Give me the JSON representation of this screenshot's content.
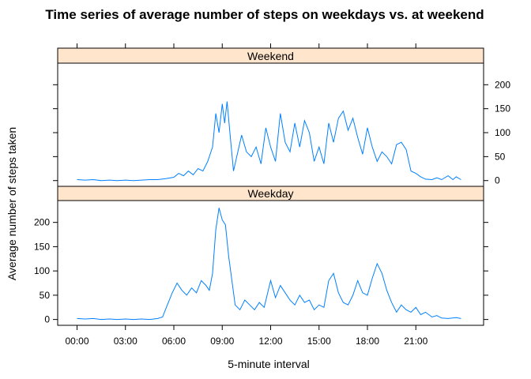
{
  "chart_data": {
    "type": "line",
    "title": "Time series of average number of steps on weekdays vs. at weekend",
    "xlabel": "5-minute interval",
    "ylabel": "Average number of steps taken",
    "x_ticks": [
      "00:00",
      "03:00",
      "06:00",
      "09:00",
      "12:00",
      "15:00",
      "18:00",
      "21:00"
    ],
    "x_tick_hours": [
      0,
      3,
      6,
      9,
      12,
      15,
      18,
      21
    ],
    "xlim_hours": [
      -1.2,
      25.2
    ],
    "y_ticks": [
      0,
      50,
      100,
      150,
      200
    ],
    "ylim": [
      -12,
      245
    ],
    "line_color": "#0080ff",
    "strip_color": "#ffe5cc",
    "panels": [
      {
        "name": "Weekend",
        "points": [
          [
            0,
            2
          ],
          [
            0.5,
            1
          ],
          [
            1,
            2
          ],
          [
            1.5,
            0
          ],
          [
            2,
            1
          ],
          [
            2.5,
            0
          ],
          [
            3,
            1
          ],
          [
            3.5,
            0
          ],
          [
            4,
            1
          ],
          [
            4.5,
            2
          ],
          [
            5,
            2
          ],
          [
            5.5,
            4
          ],
          [
            6,
            7
          ],
          [
            6.3,
            15
          ],
          [
            6.6,
            10
          ],
          [
            6.9,
            20
          ],
          [
            7.2,
            12
          ],
          [
            7.5,
            25
          ],
          [
            7.8,
            20
          ],
          [
            8.1,
            40
          ],
          [
            8.4,
            70
          ],
          [
            8.6,
            140
          ],
          [
            8.8,
            100
          ],
          [
            9.0,
            160
          ],
          [
            9.15,
            120
          ],
          [
            9.3,
            165
          ],
          [
            9.5,
            90
          ],
          [
            9.7,
            20
          ],
          [
            9.9,
            50
          ],
          [
            10.2,
            95
          ],
          [
            10.5,
            60
          ],
          [
            10.8,
            50
          ],
          [
            11.1,
            70
          ],
          [
            11.4,
            35
          ],
          [
            11.7,
            110
          ],
          [
            12.0,
            70
          ],
          [
            12.3,
            40
          ],
          [
            12.6,
            140
          ],
          [
            12.9,
            80
          ],
          [
            13.2,
            60
          ],
          [
            13.5,
            120
          ],
          [
            13.8,
            70
          ],
          [
            14.1,
            125
          ],
          [
            14.4,
            100
          ],
          [
            14.7,
            40
          ],
          [
            15.0,
            70
          ],
          [
            15.3,
            35
          ],
          [
            15.6,
            120
          ],
          [
            15.9,
            80
          ],
          [
            16.2,
            130
          ],
          [
            16.5,
            145
          ],
          [
            16.8,
            105
          ],
          [
            17.1,
            130
          ],
          [
            17.4,
            90
          ],
          [
            17.7,
            55
          ],
          [
            18.0,
            110
          ],
          [
            18.3,
            70
          ],
          [
            18.6,
            40
          ],
          [
            18.9,
            60
          ],
          [
            19.2,
            50
          ],
          [
            19.5,
            35
          ],
          [
            19.8,
            75
          ],
          [
            20.1,
            80
          ],
          [
            20.4,
            65
          ],
          [
            20.7,
            20
          ],
          [
            21.0,
            15
          ],
          [
            21.3,
            8
          ],
          [
            21.6,
            3
          ],
          [
            22.0,
            2
          ],
          [
            22.3,
            6
          ],
          [
            22.6,
            2
          ],
          [
            23.0,
            10
          ],
          [
            23.3,
            2
          ],
          [
            23.5,
            8
          ],
          [
            23.8,
            2
          ]
        ]
      },
      {
        "name": "Weekday",
        "points": [
          [
            0,
            2
          ],
          [
            0.5,
            1
          ],
          [
            1,
            2
          ],
          [
            1.5,
            0
          ],
          [
            2,
            1
          ],
          [
            2.5,
            0
          ],
          [
            3,
            1
          ],
          [
            3.5,
            0
          ],
          [
            4,
            1
          ],
          [
            4.5,
            0
          ],
          [
            5,
            2
          ],
          [
            5.3,
            5
          ],
          [
            5.6,
            30
          ],
          [
            5.9,
            55
          ],
          [
            6.2,
            75
          ],
          [
            6.5,
            60
          ],
          [
            6.8,
            50
          ],
          [
            7.1,
            65
          ],
          [
            7.4,
            55
          ],
          [
            7.7,
            80
          ],
          [
            8.0,
            70
          ],
          [
            8.2,
            60
          ],
          [
            8.4,
            95
          ],
          [
            8.6,
            185
          ],
          [
            8.8,
            230
          ],
          [
            9.0,
            205
          ],
          [
            9.2,
            195
          ],
          [
            9.4,
            130
          ],
          [
            9.6,
            80
          ],
          [
            9.8,
            30
          ],
          [
            10.1,
            20
          ],
          [
            10.4,
            40
          ],
          [
            10.7,
            30
          ],
          [
            11.0,
            20
          ],
          [
            11.3,
            35
          ],
          [
            11.6,
            25
          ],
          [
            12.0,
            80
          ],
          [
            12.3,
            45
          ],
          [
            12.6,
            70
          ],
          [
            12.9,
            55
          ],
          [
            13.2,
            40
          ],
          [
            13.5,
            30
          ],
          [
            13.8,
            50
          ],
          [
            14.1,
            35
          ],
          [
            14.4,
            40
          ],
          [
            14.7,
            20
          ],
          [
            15.0,
            30
          ],
          [
            15.3,
            25
          ],
          [
            15.6,
            80
          ],
          [
            15.9,
            95
          ],
          [
            16.2,
            55
          ],
          [
            16.5,
            35
          ],
          [
            16.8,
            30
          ],
          [
            17.1,
            50
          ],
          [
            17.4,
            80
          ],
          [
            17.7,
            55
          ],
          [
            18.0,
            50
          ],
          [
            18.3,
            85
          ],
          [
            18.6,
            115
          ],
          [
            18.9,
            95
          ],
          [
            19.2,
            60
          ],
          [
            19.5,
            35
          ],
          [
            19.8,
            15
          ],
          [
            20.1,
            30
          ],
          [
            20.4,
            20
          ],
          [
            20.7,
            15
          ],
          [
            21.0,
            25
          ],
          [
            21.3,
            10
          ],
          [
            21.6,
            15
          ],
          [
            22.0,
            5
          ],
          [
            22.3,
            8
          ],
          [
            22.6,
            3
          ],
          [
            23.0,
            2
          ],
          [
            23.5,
            4
          ],
          [
            23.8,
            2
          ]
        ]
      }
    ]
  }
}
